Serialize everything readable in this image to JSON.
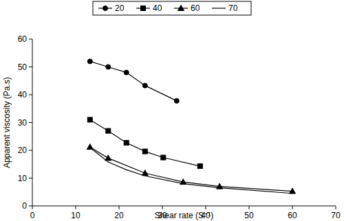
{
  "chart_data": {
    "type": "line",
    "x_label": "Shear rate (S⁻¹)",
    "y_label": "Apparent viscosity (Pa.s)",
    "xlim": [
      0,
      70
    ],
    "xticks": [
      0,
      10,
      20,
      30,
      40,
      50,
      60,
      70
    ],
    "ylim": [
      0,
      60
    ],
    "yticks": [
      0,
      10,
      20,
      30,
      40,
      50,
      60
    ],
    "grid": false,
    "legend": "top",
    "series": [
      {
        "name": "20",
        "color": "#000000",
        "marker": "circle",
        "line_style": "solid",
        "x": [
          13.3,
          17.5,
          21.7,
          26,
          33.3
        ],
        "values": [
          52,
          50,
          48,
          43.3,
          37.8
        ]
      },
      {
        "name": "40",
        "color": "#000000",
        "marker": "square",
        "line_style": "solid",
        "x": [
          13.3,
          17.5,
          21.7,
          26,
          30.2,
          38.7
        ],
        "values": [
          31,
          27,
          22.7,
          19.6,
          17.4,
          14.3
        ]
      },
      {
        "name": "60",
        "color": "#000000",
        "marker": "triangle",
        "line_style": "solid",
        "x": [
          13.3,
          17.5,
          26,
          34.8,
          43.2,
          60
        ],
        "values": [
          21.2,
          17.2,
          11.8,
          8.6,
          7,
          5.3
        ]
      },
      {
        "name": "70",
        "color": "#000000",
        "marker": "none",
        "line_style": "solid",
        "x": [
          13.3,
          17.5,
          21.7,
          26,
          34.8,
          43.2,
          60
        ],
        "values": [
          21,
          15.8,
          13,
          10.8,
          8,
          6.5,
          4.5
        ]
      }
    ]
  }
}
